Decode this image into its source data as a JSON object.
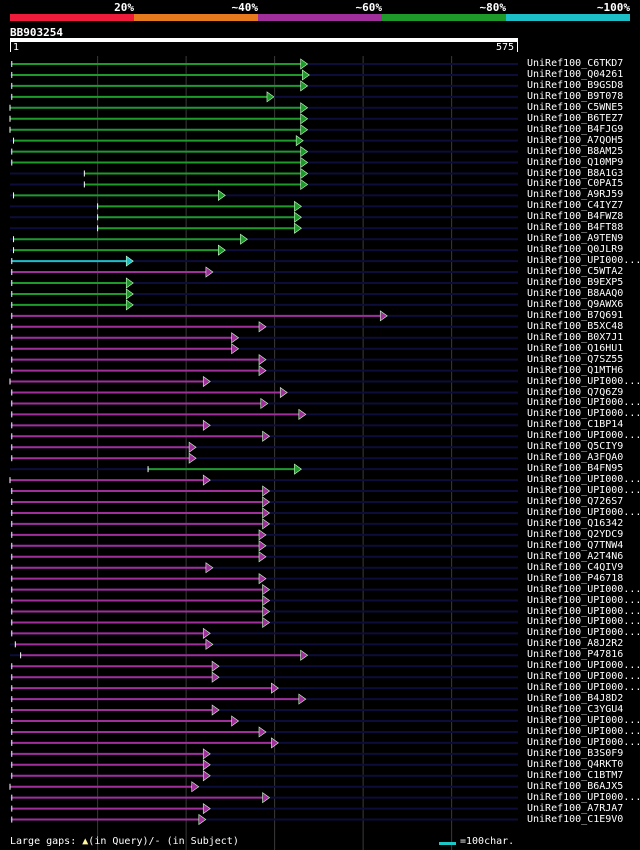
{
  "legend": {
    "segments": [
      {
        "label": "20%",
        "color": "#ee1c3a"
      },
      {
        "label": "~40%",
        "color": "#e87a1e"
      },
      {
        "label": "~60%",
        "color": "#a02f9c"
      },
      {
        "label": "~80%",
        "color": "#1e9a2a"
      },
      {
        "label": "~100%",
        "color": "#1cbfc7"
      }
    ]
  },
  "query": {
    "name": "BB903254",
    "start": "1",
    "end": "575",
    "length": 575
  },
  "footer": {
    "gaps_label": "Large gaps:",
    "in_query": "(in Query)/",
    "dash": "-",
    "in_subject": "(in Subject)",
    "scale_label": "=100char."
  },
  "chart_data": {
    "type": "alignment",
    "query_length": 575,
    "hits": [
      {
        "name": "UniRef100_C6TKD7",
        "start": 3,
        "end": 335,
        "identity": "~80%",
        "color": "#1e9a2a"
      },
      {
        "name": "UniRef100_Q04261",
        "start": 3,
        "end": 337,
        "identity": "~80%",
        "color": "#1e9a2a"
      },
      {
        "name": "UniRef100_B9GSD8",
        "start": 3,
        "end": 335,
        "identity": "~80%",
        "color": "#1e9a2a"
      },
      {
        "name": "UniRef100_B9T078",
        "start": 3,
        "end": 297,
        "identity": "~80%",
        "color": "#1e9a2a"
      },
      {
        "name": "UniRef100_C5WNE5",
        "start": 1,
        "end": 335,
        "identity": "~80%",
        "color": "#1e9a2a"
      },
      {
        "name": "UniRef100_B6TEZ7",
        "start": 1,
        "end": 335,
        "identity": "~80%",
        "color": "#1e9a2a"
      },
      {
        "name": "UniRef100_B4FJG9",
        "start": 1,
        "end": 335,
        "identity": "~80%",
        "color": "#1e9a2a"
      },
      {
        "name": "UniRef100_A7QOH5",
        "start": 5,
        "end": 330,
        "identity": "~80%",
        "color": "#1e9a2a"
      },
      {
        "name": "UniRef100_B8AM25",
        "start": 3,
        "end": 335,
        "identity": "~80%",
        "color": "#1e9a2a"
      },
      {
        "name": "UniRef100_Q10MP9",
        "start": 3,
        "end": 335,
        "identity": "~80%",
        "color": "#1e9a2a"
      },
      {
        "name": "UniRef100_B8A1G3",
        "start": 85,
        "end": 335,
        "identity": "~80%",
        "color": "#1e9a2a"
      },
      {
        "name": "UniRef100_C0PAI5",
        "start": 85,
        "end": 335,
        "identity": "~80%",
        "color": "#1e9a2a"
      },
      {
        "name": "UniRef100_A9RJ59",
        "start": 5,
        "end": 242,
        "identity": "~80%",
        "color": "#1e9a2a"
      },
      {
        "name": "UniRef100_C4IYZ7",
        "start": 100,
        "end": 328,
        "identity": "~80%",
        "color": "#1e9a2a"
      },
      {
        "name": "UniRef100_B4FWZ8",
        "start": 100,
        "end": 328,
        "identity": "~80%",
        "color": "#1e9a2a"
      },
      {
        "name": "UniRef100_B4FT88",
        "start": 100,
        "end": 328,
        "identity": "~80%",
        "color": "#1e9a2a"
      },
      {
        "name": "UniRef100_A9TEN9",
        "start": 5,
        "end": 267,
        "identity": "~80%",
        "color": "#1e9a2a"
      },
      {
        "name": "UniRef100_Q0JLR9",
        "start": 5,
        "end": 242,
        "identity": "~80%",
        "color": "#1e9a2a"
      },
      {
        "name": "UniRef100_UPI000...",
        "start": 3,
        "end": 138,
        "identity": "~100%",
        "color": "#1cbfc7"
      },
      {
        "name": "UniRef100_C5WTA2",
        "start": 3,
        "end": 228,
        "identity": "~60%",
        "color": "#a02f9c"
      },
      {
        "name": "UniRef100_B9EXP5",
        "start": 3,
        "end": 138,
        "identity": "~80%",
        "color": "#1e9a2a"
      },
      {
        "name": "UniRef100_B8AAQ0",
        "start": 3,
        "end": 138,
        "identity": "~80%",
        "color": "#1e9a2a"
      },
      {
        "name": "UniRef100_Q9AWX6",
        "start": 3,
        "end": 138,
        "identity": "~80%",
        "color": "#1e9a2a"
      },
      {
        "name": "UniRef100_B7Q691",
        "start": 3,
        "end": 425,
        "identity": "~60%",
        "color": "#a02f9c"
      },
      {
        "name": "UniRef100_B5XC48",
        "start": 3,
        "end": 288,
        "identity": "~60%",
        "color": "#a02f9c"
      },
      {
        "name": "UniRef100_B0X7J1",
        "start": 3,
        "end": 257,
        "identity": "~60%",
        "color": "#a02f9c"
      },
      {
        "name": "UniRef100_Q16HU1",
        "start": 3,
        "end": 257,
        "identity": "~60%",
        "color": "#a02f9c"
      },
      {
        "name": "UniRef100_Q7SZ55",
        "start": 3,
        "end": 288,
        "identity": "~60%",
        "color": "#a02f9c"
      },
      {
        "name": "UniRef100_Q1MTH6",
        "start": 3,
        "end": 288,
        "identity": "~60%",
        "color": "#a02f9c"
      },
      {
        "name": "UniRef100_UPI000...",
        "start": 1,
        "end": 225,
        "identity": "~60%",
        "color": "#a02f9c"
      },
      {
        "name": "UniRef100_Q7Q6Z9",
        "start": 3,
        "end": 312,
        "identity": "~60%",
        "color": "#a02f9c"
      },
      {
        "name": "UniRef100_UPI000...",
        "start": 3,
        "end": 290,
        "identity": "~60%",
        "color": "#a02f9c"
      },
      {
        "name": "UniRef100_UPI000...",
        "start": 3,
        "end": 333,
        "identity": "~60%",
        "color": "#a02f9c"
      },
      {
        "name": "UniRef100_C1BP14",
        "start": 3,
        "end": 225,
        "identity": "~60%",
        "color": "#a02f9c"
      },
      {
        "name": "UniRef100_UPI000...",
        "start": 3,
        "end": 292,
        "identity": "~60%",
        "color": "#a02f9c"
      },
      {
        "name": "UniRef100_Q5CIY9",
        "start": 3,
        "end": 209,
        "identity": "~60%",
        "color": "#a02f9c"
      },
      {
        "name": "UniRef100_A3FQA0",
        "start": 3,
        "end": 209,
        "identity": "~60%",
        "color": "#a02f9c"
      },
      {
        "name": "UniRef100_B4FN95",
        "start": 157,
        "end": 328,
        "identity": "~80%",
        "color": "#1e9a2a"
      },
      {
        "name": "UniRef100_UPI000...",
        "start": 1,
        "end": 225,
        "identity": "~60%",
        "color": "#a02f9c"
      },
      {
        "name": "UniRef100_UPI000...",
        "start": 3,
        "end": 292,
        "identity": "~60%",
        "color": "#a02f9c"
      },
      {
        "name": "UniRef100_Q726S7",
        "start": 3,
        "end": 292,
        "identity": "~60%",
        "color": "#a02f9c"
      },
      {
        "name": "UniRef100_UPI000...",
        "start": 3,
        "end": 292,
        "identity": "~60%",
        "color": "#a02f9c"
      },
      {
        "name": "UniRef100_Q16342",
        "start": 3,
        "end": 292,
        "identity": "~60%",
        "color": "#a02f9c"
      },
      {
        "name": "UniRef100_Q2YDC9",
        "start": 3,
        "end": 288,
        "identity": "~60%",
        "color": "#a02f9c"
      },
      {
        "name": "UniRef100_Q7TNW4",
        "start": 3,
        "end": 288,
        "identity": "~60%",
        "color": "#a02f9c"
      },
      {
        "name": "UniRef100_A2T4N6",
        "start": 3,
        "end": 288,
        "identity": "~60%",
        "color": "#a02f9c"
      },
      {
        "name": "UniRef100_C4QIV9",
        "start": 3,
        "end": 228,
        "identity": "~60%",
        "color": "#a02f9c"
      },
      {
        "name": "UniRef100_P46718",
        "start": 3,
        "end": 288,
        "identity": "~60%",
        "color": "#a02f9c"
      },
      {
        "name": "UniRef100_UPI000...",
        "start": 3,
        "end": 292,
        "identity": "~60%",
        "color": "#a02f9c"
      },
      {
        "name": "UniRef100_UPI000...",
        "start": 3,
        "end": 292,
        "identity": "~60%",
        "color": "#a02f9c"
      },
      {
        "name": "UniRef100_UPI000...",
        "start": 3,
        "end": 292,
        "identity": "~60%",
        "color": "#a02f9c"
      },
      {
        "name": "UniRef100_UPI000...",
        "start": 3,
        "end": 292,
        "identity": "~60%",
        "color": "#a02f9c"
      },
      {
        "name": "UniRef100_UPI000...",
        "start": 3,
        "end": 225,
        "identity": "~60%",
        "color": "#a02f9c"
      },
      {
        "name": "UniRef100_A8J2R2",
        "start": 7,
        "end": 228,
        "identity": "~60%",
        "color": "#a02f9c"
      },
      {
        "name": "UniRef100_P47816",
        "start": 13,
        "end": 335,
        "identity": "~60%",
        "color": "#a02f9c"
      },
      {
        "name": "UniRef100_UPI000...",
        "start": 3,
        "end": 235,
        "identity": "~60%",
        "color": "#a02f9c"
      },
      {
        "name": "UniRef100_UPI000...",
        "start": 3,
        "end": 235,
        "identity": "~60%",
        "color": "#a02f9c"
      },
      {
        "name": "UniRef100_UPI000...",
        "start": 3,
        "end": 302,
        "identity": "~60%",
        "color": "#a02f9c"
      },
      {
        "name": "UniRef100_B4J8D2",
        "start": 3,
        "end": 333,
        "identity": "~60%",
        "color": "#a02f9c"
      },
      {
        "name": "UniRef100_C3YGU4",
        "start": 3,
        "end": 235,
        "identity": "~60%",
        "color": "#a02f9c"
      },
      {
        "name": "UniRef100_UPI000...",
        "start": 3,
        "end": 257,
        "identity": "~60%",
        "color": "#a02f9c"
      },
      {
        "name": "UniRef100_UPI000...",
        "start": 3,
        "end": 288,
        "identity": "~60%",
        "color": "#a02f9c"
      },
      {
        "name": "UniRef100_UPI000...",
        "start": 3,
        "end": 302,
        "identity": "~60%",
        "color": "#a02f9c"
      },
      {
        "name": "UniRef100_B3S0F9",
        "start": 3,
        "end": 225,
        "identity": "~60%",
        "color": "#a02f9c"
      },
      {
        "name": "UniRef100_Q4RKT0",
        "start": 3,
        "end": 225,
        "identity": "~60%",
        "color": "#a02f9c"
      },
      {
        "name": "UniRef100_C1BTM7",
        "start": 3,
        "end": 225,
        "identity": "~60%",
        "color": "#a02f9c"
      },
      {
        "name": "UniRef100_B6AJX5",
        "start": 1,
        "end": 212,
        "identity": "~60%",
        "color": "#a02f9c"
      },
      {
        "name": "UniRef100_UPI000...",
        "start": 3,
        "end": 292,
        "identity": "~60%",
        "color": "#a02f9c"
      },
      {
        "name": "UniRef100_A7RJA7",
        "start": 3,
        "end": 225,
        "identity": "~60%",
        "color": "#a02f9c"
      },
      {
        "name": "UniRef100_C1E9V0",
        "start": 3,
        "end": 220,
        "identity": "~60%",
        "color": "#a02f9c"
      }
    ]
  }
}
